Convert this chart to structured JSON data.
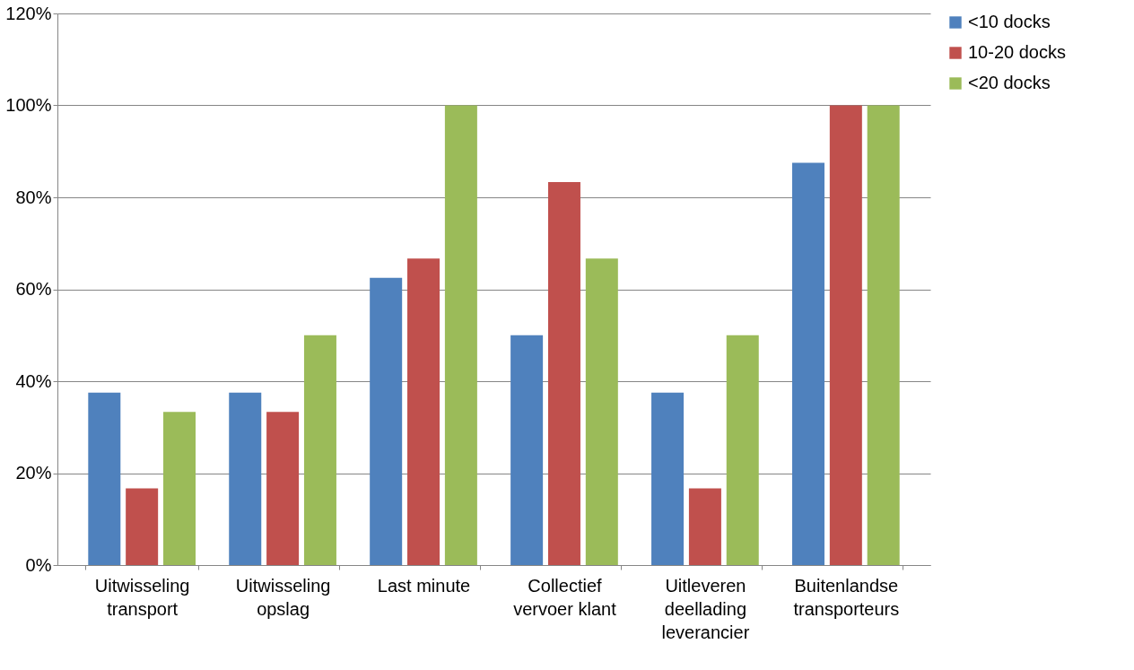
{
  "chart_data": {
    "type": "bar",
    "categories": [
      "Uitwisseling transport",
      "Uitwisseling opslag",
      "Last minute",
      "Collectief vervoer klant",
      "Uitleveren deellading leverancier",
      "Buitenlandse transporteurs"
    ],
    "series": [
      {
        "name": "<10 docks",
        "color": "#4f81bd",
        "values": [
          37.5,
          37.5,
          62.5,
          50,
          37.5,
          87.5
        ]
      },
      {
        "name": "10-20 docks",
        "color": "#c0504d",
        "values": [
          16.7,
          33.3,
          66.7,
          83.3,
          16.7,
          100
        ]
      },
      {
        "name": "<20 docks",
        "color": "#9bbb59",
        "values": [
          33.3,
          50,
          100,
          66.7,
          50,
          100
        ]
      }
    ],
    "ylim": [
      0,
      120
    ],
    "yticks": [
      {
        "value": 0,
        "label": "0%"
      },
      {
        "value": 20,
        "label": "20%"
      },
      {
        "value": 40,
        "label": "40%"
      },
      {
        "value": 60,
        "label": "60%"
      },
      {
        "value": 80,
        "label": "80%"
      },
      {
        "value": 100,
        "label": "100%"
      },
      {
        "value": 120,
        "label": "120%"
      }
    ],
    "grid": "y",
    "legend": "right"
  }
}
